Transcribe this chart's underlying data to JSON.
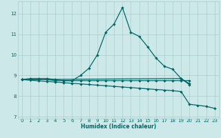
{
  "xlabel": "Humidex (Indice chaleur)",
  "background_color": "#cce8e8",
  "grid_color": "#aacccc",
  "line_color": "#006666",
  "ylim": [
    6.9,
    12.6
  ],
  "yticks": [
    7,
    8,
    9,
    10,
    11,
    12
  ],
  "xticks": [
    0,
    1,
    2,
    3,
    4,
    5,
    6,
    7,
    8,
    9,
    10,
    11,
    12,
    13,
    14,
    15,
    16,
    17,
    18,
    19,
    20,
    21,
    22,
    23
  ],
  "series1_x": [
    0,
    1,
    2,
    3,
    4,
    5,
    6,
    7,
    8,
    9,
    10,
    11,
    12,
    13,
    14,
    15,
    16,
    17,
    18,
    19,
    20
  ],
  "series1_y": [
    8.8,
    8.85,
    8.85,
    8.85,
    8.8,
    8.75,
    8.75,
    9.0,
    9.35,
    10.0,
    11.1,
    11.5,
    12.3,
    11.1,
    10.9,
    10.4,
    9.85,
    9.45,
    9.3,
    8.85,
    8.55
  ],
  "series2_x": [
    0,
    1,
    2,
    3,
    4,
    5,
    6,
    7,
    8,
    9,
    10,
    11,
    12,
    13,
    14,
    15,
    16,
    17,
    18,
    19,
    20
  ],
  "series2_y": [
    8.8,
    8.8,
    8.8,
    8.8,
    8.75,
    8.75,
    8.75,
    8.75,
    8.75,
    8.75,
    8.75,
    8.75,
    8.75,
    8.75,
    8.75,
    8.75,
    8.75,
    8.75,
    8.75,
    8.75,
    8.75
  ],
  "series3_x": [
    0,
    1,
    2,
    3,
    4,
    5,
    6,
    7,
    8,
    9,
    10,
    11,
    12,
    13,
    14,
    15,
    16,
    17,
    18,
    19,
    20,
    21,
    22,
    23
  ],
  "series3_y": [
    8.8,
    8.77,
    8.74,
    8.71,
    8.68,
    8.65,
    8.62,
    8.59,
    8.56,
    8.53,
    8.5,
    8.47,
    8.44,
    8.41,
    8.38,
    8.35,
    8.32,
    8.29,
    8.26,
    8.22,
    7.6,
    7.55,
    7.5,
    7.4
  ],
  "series4_x": [
    0,
    19,
    20
  ],
  "series4_y": [
    8.8,
    8.85,
    8.6
  ]
}
